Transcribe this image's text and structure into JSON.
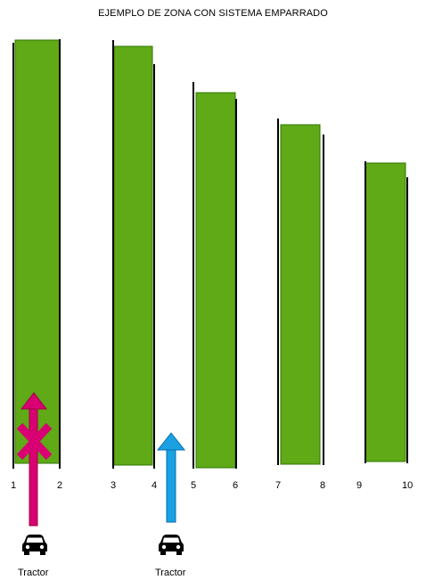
{
  "title": "EJEMPLO DE ZONA CON SISTEMA  EMPARRADO",
  "colors": {
    "row_fill": "#60a917",
    "row_border": "#2d7600",
    "wire": "#000000",
    "blocked_arrow": "#d80073",
    "ok_arrow": "#1ba1e2"
  },
  "row_numbers": [
    "1",
    "2",
    "3",
    "4",
    "5",
    "6",
    "7",
    "8",
    "9",
    "10"
  ],
  "tractors": [
    {
      "label": "Tractor",
      "icon": "car-icon",
      "arrow": "blocked"
    },
    {
      "label": "Tractor",
      "icon": "car-icon",
      "arrow": "allowed"
    }
  ]
}
